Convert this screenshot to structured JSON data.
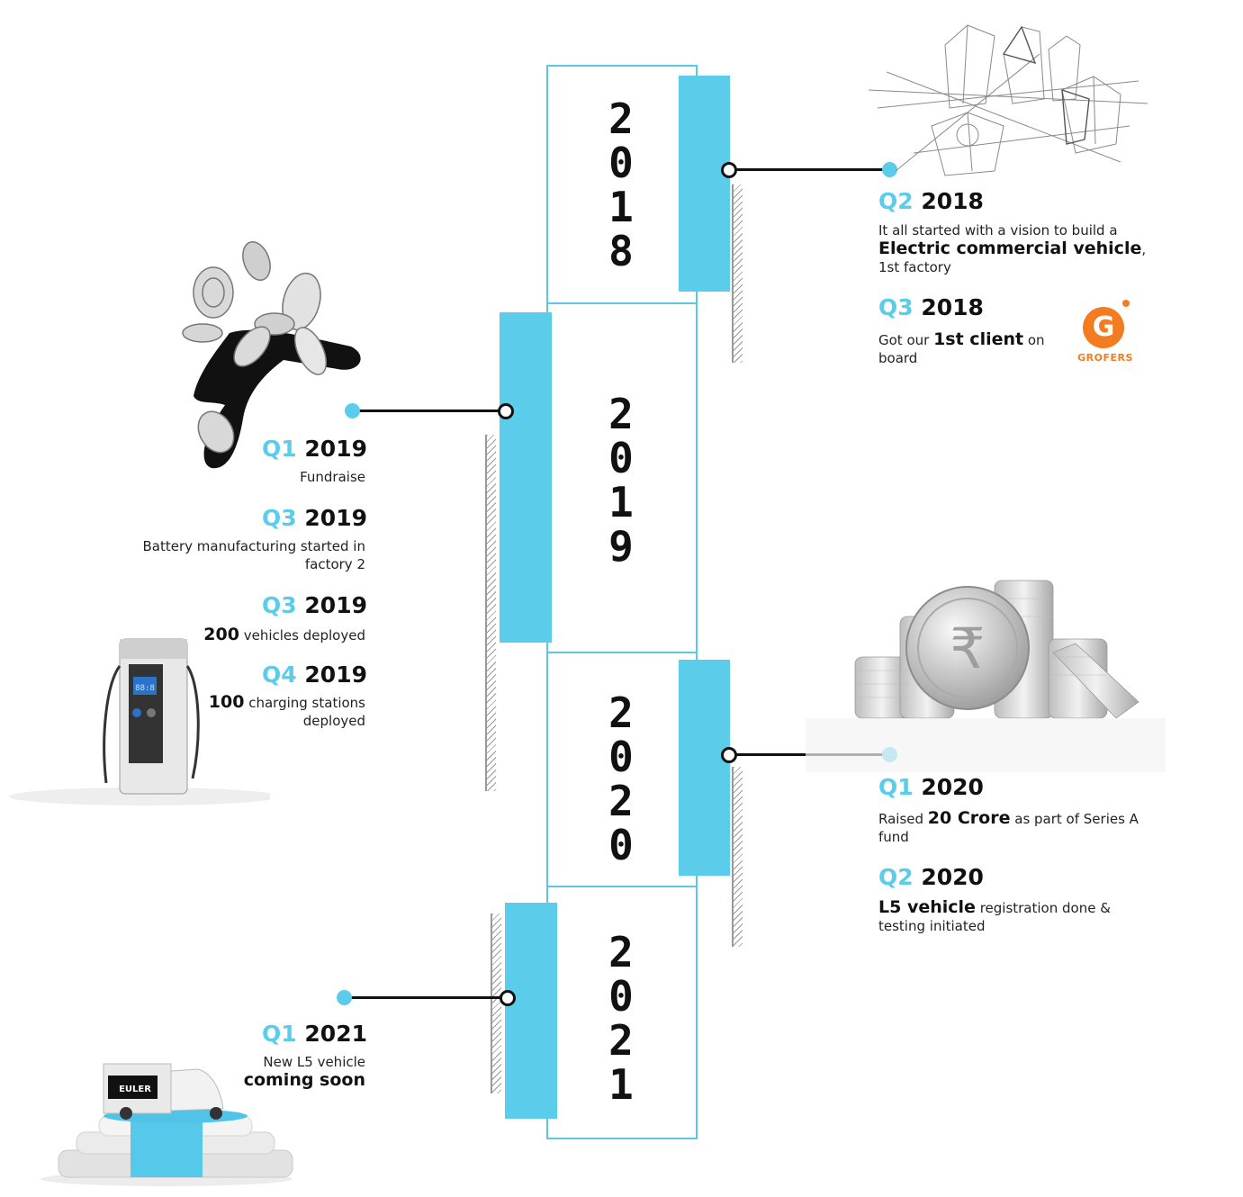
{
  "colors": {
    "accent": "#5bcdea",
    "text": "#111111",
    "grofers_orange": "#f47c20"
  },
  "timeline": [
    {
      "year": "2018",
      "digits": [
        "2",
        "0",
        "1",
        "8"
      ]
    },
    {
      "year": "2019",
      "digits": [
        "2",
        "0",
        "1",
        "9"
      ]
    },
    {
      "year": "2020",
      "digits": [
        "2",
        "0",
        "2",
        "0"
      ]
    },
    {
      "year": "2021",
      "digits": [
        "2",
        "0",
        "2",
        "1"
      ]
    }
  ],
  "milestones": {
    "q2_2018": {
      "quarter": "Q2",
      "year": "2018",
      "pre": "It all started with a vision to build a ",
      "bold": "Electric commercial vehicle",
      "post": ", 1st factory"
    },
    "q3_2018": {
      "quarter": "Q3",
      "year": "2018",
      "pre": "Got our ",
      "bold": "1st client",
      "post": " on board"
    },
    "q1_2019": {
      "quarter": "Q1",
      "year": "2019",
      "text": "Fundraise"
    },
    "q3_2019a": {
      "quarter": "Q3",
      "year": "2019",
      "text": "Battery manufacturing started in factory 2"
    },
    "q3_2019b": {
      "quarter": "Q3",
      "year": "2019",
      "bold": "200",
      "post": " vehicles deployed"
    },
    "q4_2019": {
      "quarter": "Q4",
      "year": "2019",
      "bold": "100",
      "post": " charging stations deployed"
    },
    "q1_2020": {
      "quarter": "Q1",
      "year": "2020",
      "pre": "Raised ",
      "bold": "20 Crore",
      "post": " as part of Series A fund"
    },
    "q2_2020": {
      "quarter": "Q2",
      "year": "2020",
      "bold": "L5 vehicle",
      "post": " registration done & testing initiated"
    },
    "q1_2021": {
      "quarter": "Q1",
      "year": "2021",
      "pre": "New L5 vehicle",
      "bold": "coming soon"
    }
  },
  "logos": {
    "grofers_letter": "G",
    "grofers_name": "GROFERS",
    "euler_name": "EULER"
  },
  "charger_display": "88:8",
  "icons": [
    "sketch-illustration",
    "flying-coins-illustration",
    "coin-stack-icon",
    "charging-station-icon",
    "podium-vehicle-illustration",
    "grofers-logo"
  ]
}
